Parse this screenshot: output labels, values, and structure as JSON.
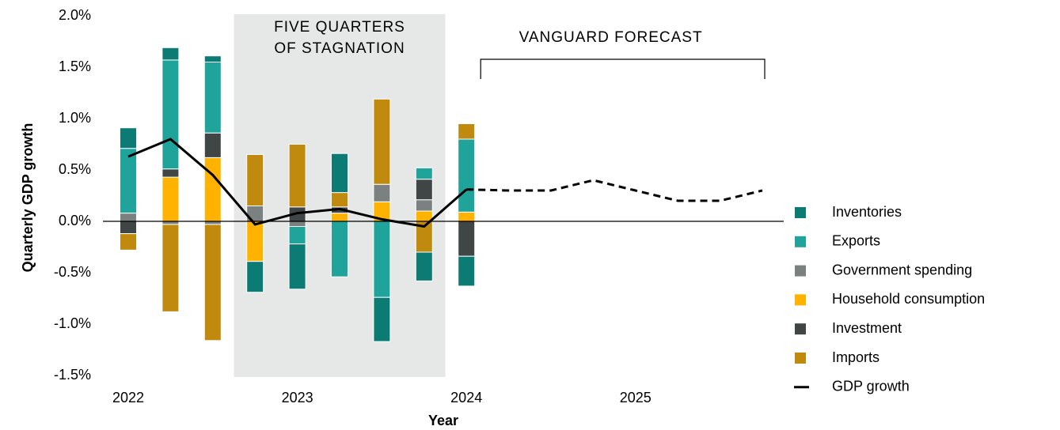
{
  "chart_data": {
    "type": "bar",
    "x_label": "Year",
    "y_label": "Quarterly GDP growth",
    "categories": [
      "2022",
      null,
      null,
      null,
      "2023",
      null,
      null,
      null,
      "2024",
      null,
      null,
      null,
      "2025",
      null,
      null,
      null
    ],
    "ylim": [
      -1.5,
      2.0
    ],
    "yticks": [
      {
        "value": -1.5,
        "label": "-1.5%"
      },
      {
        "value": -1.0,
        "label": "-1.0%"
      },
      {
        "value": -0.5,
        "label": "-0.5%"
      },
      {
        "value": 0.0,
        "label": "0.0%"
      },
      {
        "value": 0.5,
        "label": "0.5%"
      },
      {
        "value": 1.0,
        "label": "1.0%"
      },
      {
        "value": 1.5,
        "label": "1.5%"
      },
      {
        "value": 2.0,
        "label": "2.0%"
      }
    ],
    "shaded": {
      "label": [
        "FIVE QUARTERS",
        "OF STAGNATION"
      ],
      "from": 3,
      "to": 7
    },
    "forecast": {
      "label": "VANGUARD FORECAST",
      "from": 8,
      "to": 15
    },
    "series": [
      {
        "name": "Inventories",
        "color": "#0b7b73",
        "values": [
          0.2,
          0.12,
          0.06,
          -0.3,
          -0.44,
          0.38,
          -0.43,
          -0.28,
          -0.29,
          null,
          null,
          null,
          null,
          null,
          null,
          null
        ]
      },
      {
        "name": "Exports",
        "color": "#1fa39a",
        "values": [
          0.63,
          1.06,
          0.69,
          0,
          -0.17,
          -0.54,
          -0.74,
          0.11,
          0.71,
          null,
          null,
          null,
          null,
          null,
          null,
          null
        ]
      },
      {
        "name": "Government spending",
        "color": "#7b8080",
        "values": [
          0.08,
          -0.03,
          -0.03,
          0.15,
          -0.05,
          0,
          0.17,
          0.11,
          0,
          null,
          null,
          null,
          null,
          null,
          null,
          null
        ]
      },
      {
        "name": "Household consumption",
        "color": "#ffb300",
        "values": [
          0,
          0.43,
          0.62,
          -0.39,
          0,
          0.08,
          0.19,
          0.1,
          0.09,
          null,
          null,
          null,
          null,
          null,
          null,
          null
        ]
      },
      {
        "name": "Investment",
        "color": "#404646",
        "values": [
          -0.12,
          0.08,
          0.24,
          0,
          0.14,
          0.06,
          0,
          0.2,
          -0.34,
          null,
          null,
          null,
          null,
          null,
          null,
          null
        ]
      },
      {
        "name": "Imports",
        "color": "#c08a0f",
        "values": [
          -0.16,
          -0.85,
          -1.13,
          0.5,
          0.61,
          0.14,
          0.83,
          -0.3,
          0.15,
          null,
          null,
          null,
          null,
          null,
          null,
          null
        ]
      },
      {
        "name": "GDP growth",
        "type": "line",
        "color": "#000000",
        "values": [
          0.63,
          0.8,
          0.45,
          -0.03,
          0.08,
          0.12,
          0.02,
          -0.05,
          0.31,
          0.3,
          0.3,
          0.4,
          0.3,
          0.2,
          0.2,
          0.3
        ]
      }
    ]
  }
}
